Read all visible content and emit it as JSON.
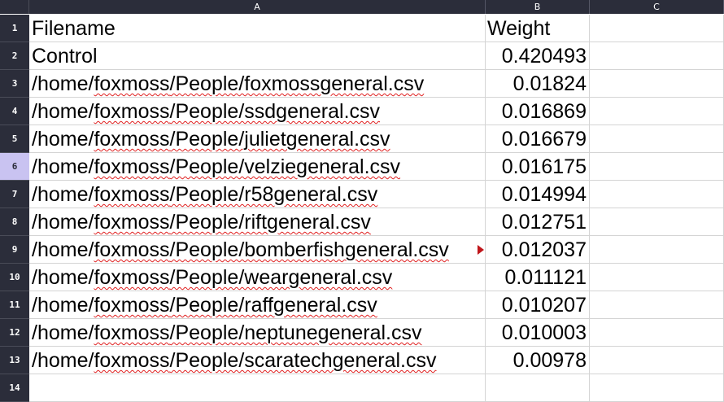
{
  "columns": [
    "A",
    "B",
    "C"
  ],
  "rows": [
    {
      "num": "1",
      "a_prefix": "Filename",
      "a_word": "",
      "a_suffix": "",
      "b": "Weight",
      "b_is_text": true
    },
    {
      "num": "2",
      "a_prefix": "Control",
      "a_word": "",
      "a_suffix": "",
      "b": "0.420493"
    },
    {
      "num": "3",
      "a_prefix": "/home/",
      "a_word": "foxmoss",
      "a_suffix": "/People/foxmossgeneral.csv",
      "b": "0.01824"
    },
    {
      "num": "4",
      "a_prefix": "/home/",
      "a_word": "foxmoss",
      "a_suffix": "/People/ssdgeneral.csv",
      "b": "0.016869"
    },
    {
      "num": "5",
      "a_prefix": "/home/",
      "a_word": "foxmoss",
      "a_suffix": "/People/julietgeneral.csv",
      "b": "0.016679"
    },
    {
      "num": "6",
      "a_prefix": "/home/",
      "a_word": "foxmoss",
      "a_suffix": "/People/velziegeneral.csv",
      "b": "0.016175"
    },
    {
      "num": "7",
      "a_prefix": "/home/",
      "a_word": "foxmoss",
      "a_suffix": "/People/r58general.csv",
      "b": "0.014994"
    },
    {
      "num": "8",
      "a_prefix": "/home/",
      "a_word": "foxmoss",
      "a_suffix": "/People/riftgeneral.csv",
      "b": "0.012751"
    },
    {
      "num": "9",
      "a_prefix": "/home/",
      "a_word": "foxmoss",
      "a_suffix": "/People/bomberfishgeneral.csv",
      "b": "0.012037"
    },
    {
      "num": "10",
      "a_prefix": "/home/",
      "a_word": "foxmoss",
      "a_suffix": "/People/weargeneral.csv",
      "b": "0.011121"
    },
    {
      "num": "11",
      "a_prefix": "/home/",
      "a_word": "foxmoss",
      "a_suffix": "/People/raffgeneral.csv",
      "b": "0.010207"
    },
    {
      "num": "12",
      "a_prefix": "/home/",
      "a_word": "foxmoss",
      "a_suffix": "/People/neptunegeneral.csv",
      "b": "0.010003"
    },
    {
      "num": "13",
      "a_prefix": "/home/",
      "a_word": "foxmoss",
      "a_suffix": "/People/scaratechgeneral.csv",
      "b": "0.00978"
    },
    {
      "num": "14",
      "a_prefix": "",
      "a_word": "",
      "a_suffix": "",
      "b": ""
    }
  ],
  "selected_row": "6",
  "colors": {
    "header_bg": "#2b2d3a",
    "selected_row_header": "#c9c3f1",
    "spellcheck": "#e02020",
    "overflow_marker": "#c0161b"
  }
}
